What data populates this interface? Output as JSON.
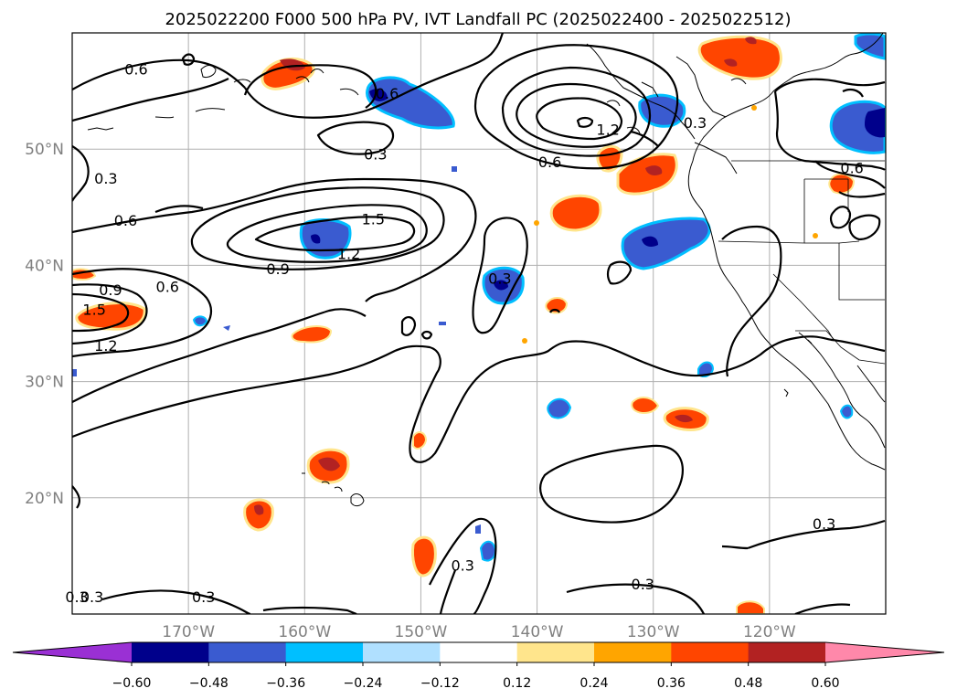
{
  "title": "2025022200 F000 500 hPa PV, IVT Landfall PC (2025022400 - 2025022512)",
  "map": {
    "lon_range": [
      -180,
      -110
    ],
    "lat_range": [
      10,
      60
    ],
    "lon_ticks": [
      {
        "label": "170°W",
        "lon": -170
      },
      {
        "label": "160°W",
        "lon": -160
      },
      {
        "label": "150°W",
        "lon": -150
      },
      {
        "label": "140°W",
        "lon": -140
      },
      {
        "label": "130°W",
        "lon": -130
      },
      {
        "label": "120°W",
        "lon": -120
      }
    ],
    "lat_ticks": [
      {
        "label": "50°N",
        "lat": 50
      },
      {
        "label": "40°N",
        "lat": 40
      },
      {
        "label": "30°N",
        "lat": 30
      },
      {
        "label": "20°N",
        "lat": 20
      }
    ],
    "grid": true,
    "contour_labels": [
      {
        "text": "0.6",
        "lon": -174.5,
        "lat": 56.9
      },
      {
        "text": "0.6",
        "lon": -152.9,
        "lat": 54.8
      },
      {
        "text": "0.3",
        "lon": -153.9,
        "lat": 49.6
      },
      {
        "text": "0.3",
        "lon": -177.1,
        "lat": 47.5
      },
      {
        "text": "0.6",
        "lon": -175.4,
        "lat": 43.9
      },
      {
        "text": "1.5",
        "lon": -154.1,
        "lat": 44.0
      },
      {
        "text": "1.2",
        "lon": -156.2,
        "lat": 41.0
      },
      {
        "text": "0.9",
        "lon": -162.3,
        "lat": 39.7
      },
      {
        "text": "0.9",
        "lon": -176.7,
        "lat": 37.9
      },
      {
        "text": "0.6",
        "lon": -171.8,
        "lat": 38.2
      },
      {
        "text": "1.5",
        "lon": -178.1,
        "lat": 36.2
      },
      {
        "text": "1.2",
        "lon": -177.1,
        "lat": 33.1
      },
      {
        "text": "0.3",
        "lon": -143.2,
        "lat": 38.9
      },
      {
        "text": "1.2",
        "lon": -133.9,
        "lat": 51.7
      },
      {
        "text": "0.6",
        "lon": -138.9,
        "lat": 48.9
      },
      {
        "text": "0.3",
        "lon": -126.4,
        "lat": 52.3
      },
      {
        "text": "0.6",
        "lon": -112.9,
        "lat": 48.4
      },
      {
        "text": "0.3",
        "lon": -115.3,
        "lat": 17.8
      },
      {
        "text": "0.3",
        "lon": -146.4,
        "lat": 14.2
      },
      {
        "text": "0.3",
        "lon": -130.9,
        "lat": 12.6
      },
      {
        "text": "0.3",
        "lon": -168.7,
        "lat": 11.5
      },
      {
        "text": "0.3",
        "lon": -179.6,
        "lat": 11.5
      },
      {
        "text": "0.3",
        "lon": -178.3,
        "lat": 11.5
      }
    ]
  },
  "colorbar": {
    "tick_labels": [
      "−0.60",
      "−0.48",
      "−0.36",
      "−0.24",
      "−0.12",
      "0.12",
      "0.24",
      "0.36",
      "0.48",
      "0.60"
    ],
    "colors": [
      "#9a30d4",
      "#00008b",
      "#3a5bd0",
      "#00bfff",
      "#b0e0ff",
      "#ffffff",
      "#ffe58c",
      "#ffa500",
      "#ff4500",
      "#b22222",
      "#ff88aa"
    ],
    "extend": "both"
  }
}
